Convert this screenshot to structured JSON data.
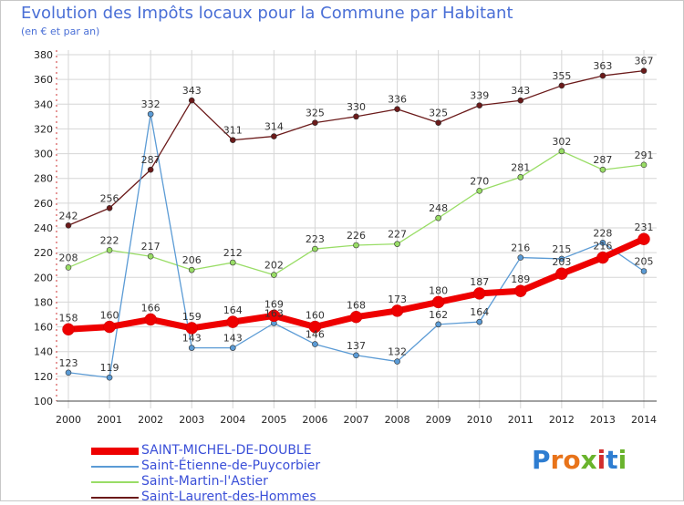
{
  "title": "Evolution des Impôts locaux pour la Commune par Habitant",
  "subtitle": "(en € et par an)",
  "logo": "Proxiti",
  "chart_data": {
    "type": "line",
    "title": "Evolution des Impôts locaux pour la Commune par Habitant",
    "subtitle": "(en € et par an)",
    "xlabel": "",
    "ylabel": "",
    "categories": [
      "2000",
      "2001",
      "2002",
      "2003",
      "2004",
      "2005",
      "2006",
      "2007",
      "2008",
      "2009",
      "2010",
      "2011",
      "2012",
      "2013",
      "2014"
    ],
    "ylim": [
      100,
      380
    ],
    "yticks": [
      100,
      120,
      140,
      160,
      180,
      200,
      220,
      240,
      260,
      280,
      300,
      320,
      340,
      360,
      380
    ],
    "grid": true,
    "legend_position": "bottom-left",
    "series": [
      {
        "name": "SAINT-MICHEL-DE-DOUBLE",
        "color": "#ee0000",
        "values": [
          158,
          160,
          166,
          159,
          164,
          169,
          160,
          168,
          173,
          180,
          187,
          189,
          203,
          216,
          231
        ]
      },
      {
        "name": "Saint-Étienne-de-Puycorbier",
        "color": "#5b9bd5",
        "values": [
          123,
          119,
          332,
          143,
          143,
          163,
          146,
          137,
          132,
          162,
          164,
          216,
          215,
          228,
          205
        ]
      },
      {
        "name": "Saint-Martin-l'Astier",
        "color": "#99dd66",
        "values": [
          208,
          222,
          217,
          206,
          212,
          202,
          223,
          226,
          227,
          248,
          270,
          281,
          302,
          287,
          291
        ]
      },
      {
        "name": "Saint-Laurent-des-Hommes",
        "color": "#6b1a1a",
        "values": [
          242,
          256,
          287,
          343,
          311,
          314,
          325,
          330,
          336,
          325,
          339,
          343,
          355,
          363,
          367
        ]
      }
    ]
  }
}
